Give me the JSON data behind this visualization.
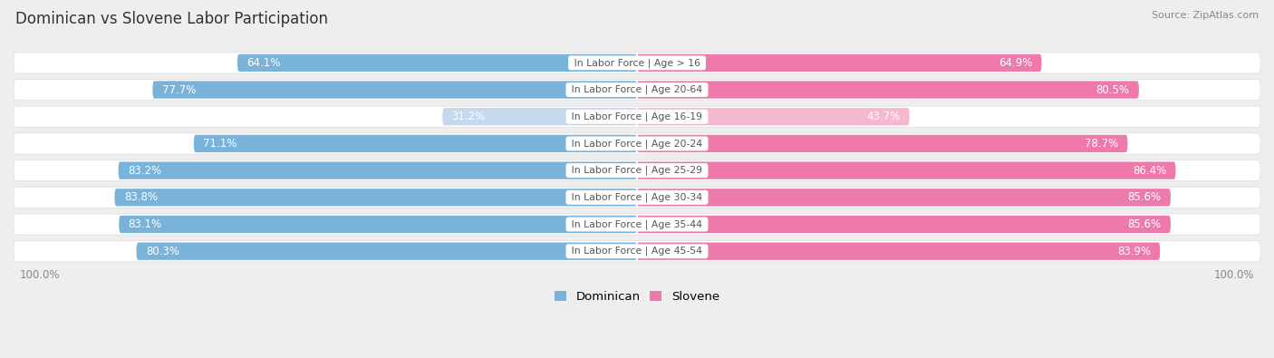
{
  "title": "Dominican vs Slovene Labor Participation",
  "source": "Source: ZipAtlas.com",
  "categories": [
    "In Labor Force | Age > 16",
    "In Labor Force | Age 20-64",
    "In Labor Force | Age 16-19",
    "In Labor Force | Age 20-24",
    "In Labor Force | Age 25-29",
    "In Labor Force | Age 30-34",
    "In Labor Force | Age 35-44",
    "In Labor Force | Age 45-54"
  ],
  "dominican": [
    64.1,
    77.7,
    31.2,
    71.1,
    83.2,
    83.8,
    83.1,
    80.3
  ],
  "slovene": [
    64.9,
    80.5,
    43.7,
    78.7,
    86.4,
    85.6,
    85.6,
    83.9
  ],
  "dominican_color": "#7ab3d9",
  "dominican_color_light": "#c5d9ed",
  "slovene_color": "#ee7aab",
  "slovene_color_light": "#f5b8d0",
  "bg_color": "#eeeeee",
  "row_bg": "#f8f8f8",
  "row_border": "#dddddd",
  "label_dark": "#444444",
  "label_light": "#888888",
  "center_label_color": "#555555",
  "axis_label_color": "#888888",
  "max_val": 100.0,
  "figsize": [
    14.06,
    3.95
  ],
  "dpi": 100
}
